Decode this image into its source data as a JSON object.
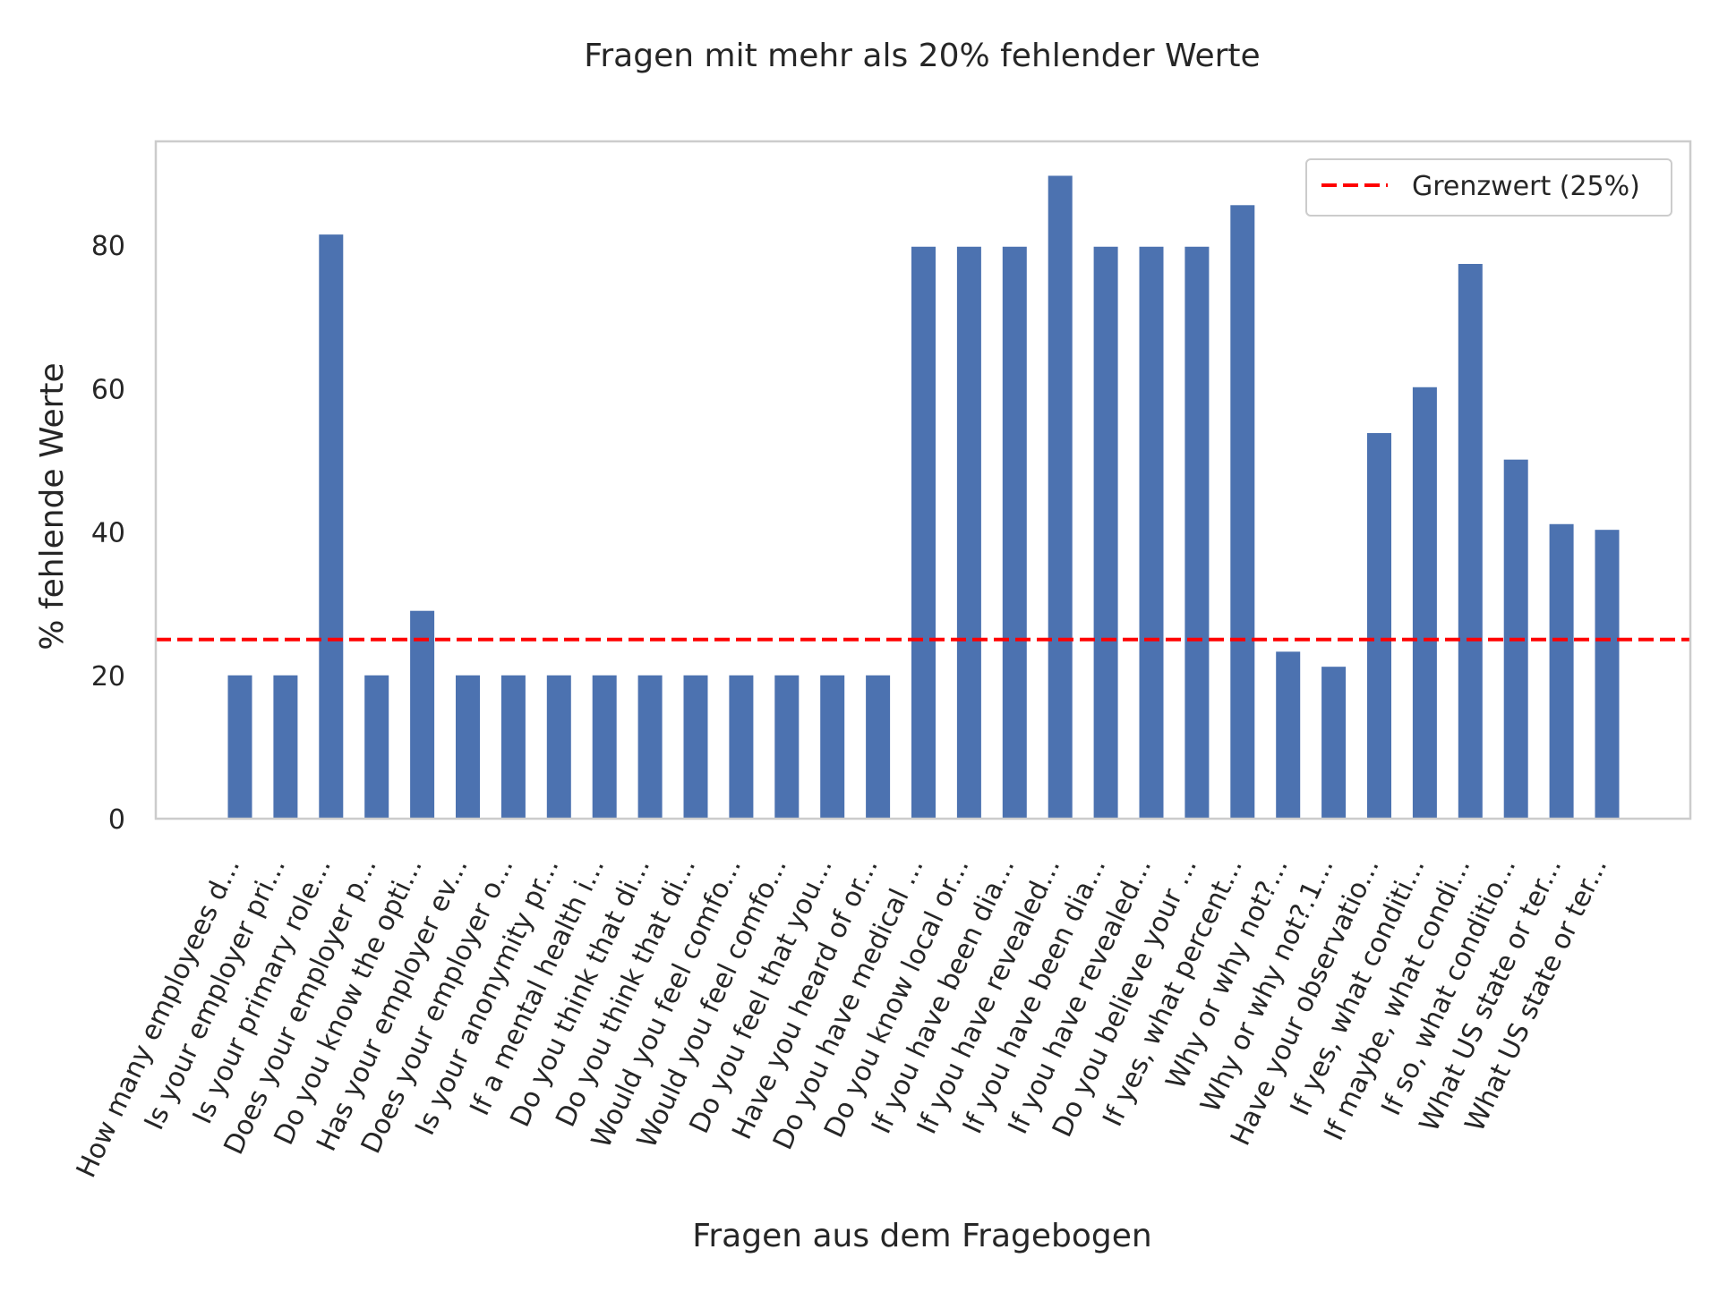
{
  "chart_data": {
    "type": "bar",
    "title": "Fragen mit mehr als 20% fehlender Werte",
    "xlabel": "Fragen aus dem Fragebogen",
    "ylabel": "% fehlende Werte",
    "ylim": [
      0,
      94.5
    ],
    "yticks": [
      0,
      20,
      40,
      60,
      80
    ],
    "grid": false,
    "legend_position": "top-right",
    "categories": [
      "How many employees d...",
      "Is your employer pri...",
      "Is your primary role...",
      "Does your employer p...",
      "Do you know the opti...",
      "Has your employer ev...",
      "Does your employer o...",
      "Is your anonymity pr...",
      "If a mental health i...",
      "Do you think that di...",
      "Do you think that di...",
      "Would you feel comfo...",
      "Would you feel comfo...",
      "Do you feel that you...",
      "Have you heard of or...",
      "Do you have medical ...",
      "Do you know local or...",
      "If you have been dia...",
      "If you have revealed...",
      "If you have been dia...",
      "If you have revealed...",
      "Do you believe your ...",
      "If yes, what percent...",
      "Why or why not?...",
      "Why or why not?.1...",
      "Have your observatio...",
      "If yes, what conditi...",
      "If maybe, what condi...",
      "If so, what conditio...",
      "What US state or ter...",
      "What US state or ter..."
    ],
    "series": [
      {
        "values": [
          20.0,
          20.0,
          81.5,
          20.0,
          29.0,
          20.0,
          20.0,
          20.0,
          20.0,
          20.0,
          20.0,
          20.0,
          20.0,
          20.0,
          20.0,
          79.8,
          79.8,
          79.8,
          89.7,
          79.8,
          79.8,
          79.8,
          85.6,
          23.3,
          21.2,
          53.8,
          60.2,
          77.4,
          50.1,
          41.1,
          40.3
        ]
      }
    ],
    "threshold": {
      "label": "Grenzwert (25%)",
      "value": 25
    },
    "colors": {
      "bar": "#4c72b0",
      "threshold_line": "#ff0000",
      "axes_edge": "#cccccc",
      "legend_edge": "#cccccc",
      "text": "#262626"
    }
  }
}
